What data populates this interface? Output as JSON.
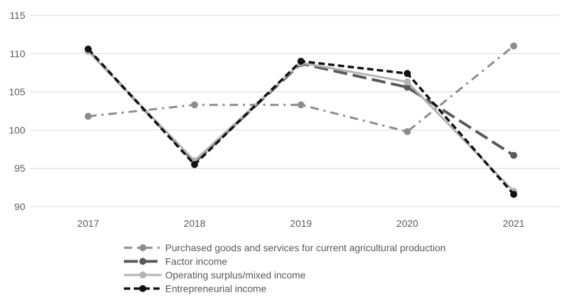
{
  "chart_data": {
    "type": "line",
    "title": "",
    "xlabel": "",
    "ylabel": "",
    "categories": [
      "2017",
      "2018",
      "2019",
      "2020",
      "2021"
    ],
    "ylim": [
      90,
      115
    ],
    "yticks": [
      90,
      95,
      100,
      105,
      110,
      115
    ],
    "grid": true,
    "legend_position": "bottom",
    "series": [
      {
        "name": "Purchased goods and services for current agricultural production",
        "values": [
          101.8,
          103.3,
          103.3,
          99.8,
          111.0
        ],
        "color": "#8c8c8c",
        "style": "dash-dot"
      },
      {
        "name": "Factor income",
        "values": [
          110.4,
          95.8,
          108.7,
          105.6,
          96.7
        ],
        "color": "#595959",
        "style": "long-dash"
      },
      {
        "name": "Operating surplus/mixed income",
        "values": [
          110.3,
          96.0,
          108.8,
          106.3,
          92.0
        ],
        "color": "#b3b3b3",
        "style": "solid"
      },
      {
        "name": "Entrepreneurial income",
        "values": [
          110.6,
          95.5,
          109.0,
          107.4,
          91.6
        ],
        "color": "#111111",
        "style": "dash"
      }
    ]
  }
}
